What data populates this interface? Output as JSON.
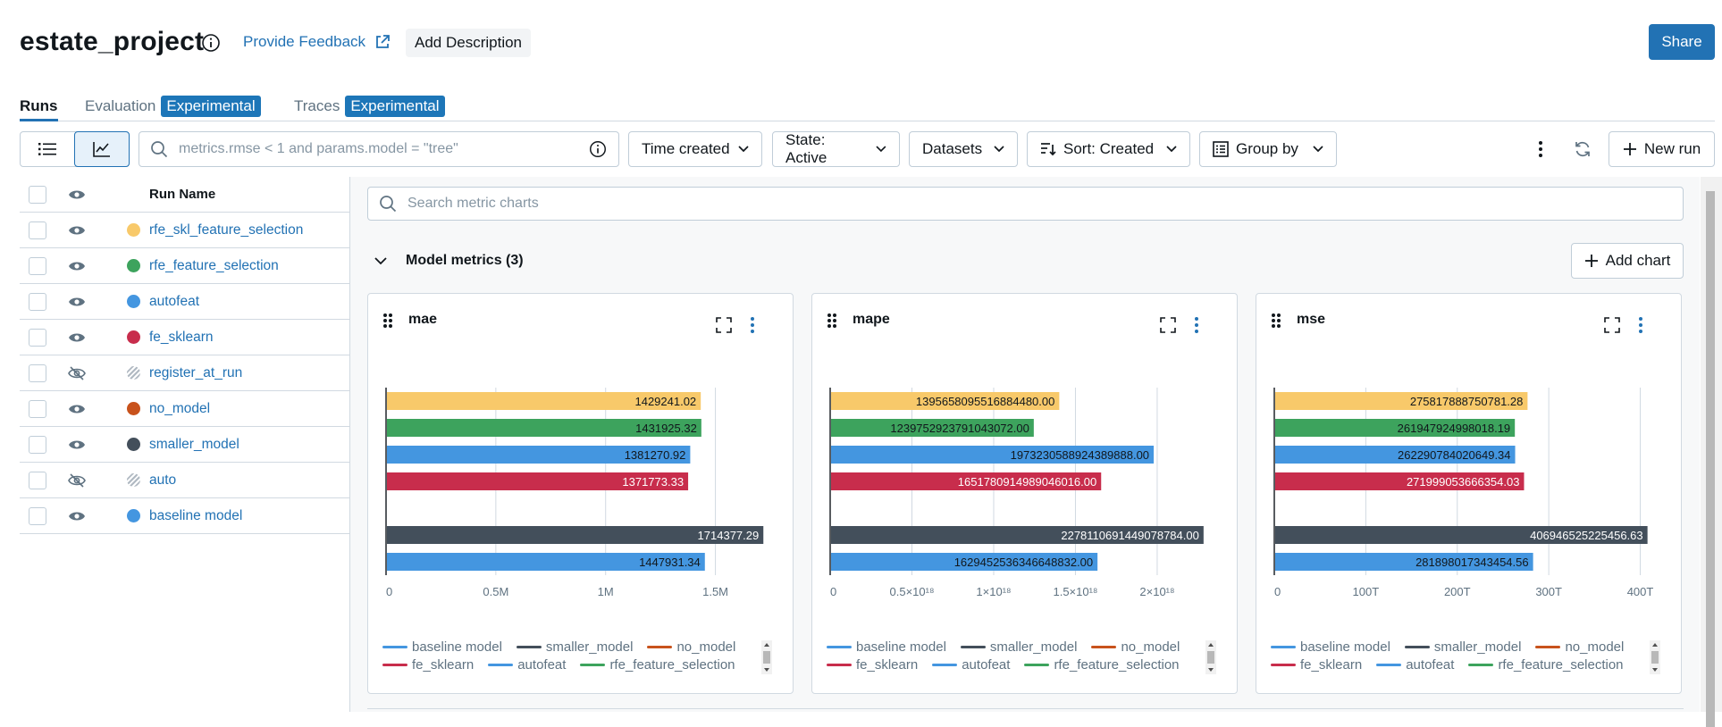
{
  "header": {
    "title": "estate_project",
    "feedback_label": "Provide Feedback",
    "add_description_label": "Add Description",
    "share_label": "Share"
  },
  "tabs": [
    {
      "label": "Runs",
      "badge": ""
    },
    {
      "label": "Evaluation",
      "badge": "Experimental"
    },
    {
      "label": "Traces",
      "badge": "Experimental"
    }
  ],
  "toolbar": {
    "search_placeholder": "metrics.rmse < 1 and params.model = \"tree\"",
    "time_label": "Time created",
    "state_label": "State: Active",
    "datasets_label": "Datasets",
    "sort_label": "Sort: Created",
    "groupby_label": "Group by",
    "new_run_label": "New run"
  },
  "runs_table": {
    "column_name": "Run Name",
    "rows": [
      {
        "name": "rfe_skl_feature_selection",
        "color": "#f8c96a",
        "visible": true
      },
      {
        "name": "rfe_feature_selection",
        "color": "#3da35d",
        "visible": true
      },
      {
        "name": "autofeat",
        "color": "#4496e0",
        "visible": true
      },
      {
        "name": "fe_sklearn",
        "color": "#c82d4c",
        "visible": true
      },
      {
        "name": "register_at_run",
        "color": "hatched",
        "visible": false
      },
      {
        "name": "no_model",
        "color": "#c8521c",
        "visible": true
      },
      {
        "name": "smaller_model",
        "color": "#434f5b",
        "visible": true
      },
      {
        "name": "auto",
        "color": "hatched",
        "visible": false
      },
      {
        "name": "baseline model",
        "color": "#4496e0",
        "visible": true
      }
    ]
  },
  "charts_panel": {
    "search_placeholder": "Search metric charts",
    "section_title": "Model metrics (3)",
    "add_chart_label": "Add chart"
  },
  "legend": [
    {
      "name": "baseline model",
      "color": "#4496e0"
    },
    {
      "name": "smaller_model",
      "color": "#434f5b"
    },
    {
      "name": "no_model",
      "color": "#c8521c"
    },
    {
      "name": "fe_sklearn",
      "color": "#c82d4c"
    },
    {
      "name": "autofeat",
      "color": "#4496e0"
    },
    {
      "name": "rfe_feature_selection",
      "color": "#3da35d"
    }
  ],
  "chart_data": [
    {
      "type": "bar",
      "orientation": "horizontal",
      "title": "mae",
      "xlim": [
        0,
        1750000
      ],
      "xticks": [
        0,
        500000,
        1000000,
        1500000
      ],
      "xtick_labels": [
        "0",
        "0.5M",
        "1M",
        "1.5M"
      ],
      "categories": [
        "rfe_skl_feature_selection",
        "rfe_feature_selection",
        "autofeat",
        "fe_sklearn",
        "no_model",
        "smaller_model",
        "baseline model"
      ],
      "values": [
        1429241.02,
        1431925.32,
        1381270.92,
        1371773.33,
        null,
        1714377.29,
        1447931.34
      ],
      "labels": [
        "1429241.02",
        "1431925.32",
        "1381270.92",
        "1371773.33",
        "",
        "1714377.29",
        "1447931.34"
      ],
      "colors": [
        "#f8c96a",
        "#3da35d",
        "#4496e0",
        "#c82d4c",
        "#c8521c",
        "#434f5b",
        "#4496e0"
      ],
      "grid": true
    },
    {
      "type": "bar",
      "orientation": "horizontal",
      "title": "mape",
      "xlim": [
        0,
        2350000000000000000
      ],
      "xticks": [
        0,
        500000000000000000,
        1000000000000000000,
        1500000000000000000,
        2000000000000000000
      ],
      "xtick_labels": [
        "0",
        "0.5×10¹⁸",
        "1×10¹⁸",
        "1.5×10¹⁸",
        "2×10¹⁸"
      ],
      "categories": [
        "rfe_skl_feature_selection",
        "rfe_feature_selection",
        "autofeat",
        "fe_sklearn",
        "no_model",
        "smaller_model",
        "baseline model"
      ],
      "values": [
        1395658095516884480,
        1239752923791043072,
        1973230588924389888,
        1651780914989046016,
        null,
        2278110691449078784,
        1629452536346648832
      ],
      "labels": [
        "1395658095516884480.00",
        "1239752923791043072.00",
        "1973230588924389888.00",
        "1651780914989046016.00",
        "",
        "2278110691449078784.00",
        "1629452536346648832.00"
      ],
      "colors": [
        "#f8c96a",
        "#3da35d",
        "#4496e0",
        "#c82d4c",
        "#c8521c",
        "#434f5b",
        "#4496e0"
      ],
      "grid": true
    },
    {
      "type": "bar",
      "orientation": "horizontal",
      "title": "mse",
      "xlim": [
        0,
        420000000000000
      ],
      "xticks": [
        0,
        100000000000000,
        200000000000000,
        300000000000000,
        400000000000000
      ],
      "xtick_labels": [
        "0",
        "100T",
        "200T",
        "300T",
        "400T"
      ],
      "categories": [
        "rfe_skl_feature_selection",
        "rfe_feature_selection",
        "autofeat",
        "fe_sklearn",
        "no_model",
        "smaller_model",
        "baseline model"
      ],
      "values": [
        275817888750781.28,
        261947924998018.2,
        262290784020649.34,
        271999053666354.03,
        null,
        406946525225456.6,
        281898017343454.56
      ],
      "labels": [
        "275817888750781.28",
        "261947924998018.19",
        "262290784020649.34",
        "271999053666354.03",
        "",
        "406946525225456.63",
        "281898017343454.56"
      ],
      "colors": [
        "#f8c96a",
        "#3da35d",
        "#4496e0",
        "#c82d4c",
        "#c8521c",
        "#434f5b",
        "#4496e0"
      ],
      "grid": true
    }
  ]
}
